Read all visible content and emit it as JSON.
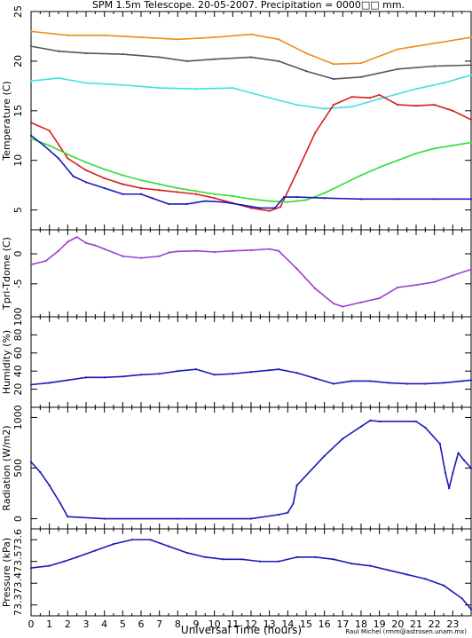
{
  "title": "SPM 1.5m Telescope. 20-05-2007. Precipitation = 0000□□ mm.",
  "xlabel": "Universal Time (hours)",
  "credit": "Raul Michel (rmm@astrosen.unam.mx)",
  "colors": {
    "orange": "#ef8a1e",
    "gray": "#555555",
    "cyan": "#40e0e0",
    "red": "#d81e1e",
    "green": "#33dd33",
    "blue": "#1a1ab8",
    "purple": "#9a3fd0"
  },
  "chart_data": [
    {
      "type": "scatter",
      "ylabel": "Temperature (C)",
      "xlim": [
        0,
        24
      ],
      "ylim": [
        3,
        25
      ],
      "xticks": [
        "0",
        "1",
        "2",
        "3",
        "4",
        "5",
        "6",
        "7",
        "8",
        "9",
        "10",
        "11",
        "12",
        "13",
        "14",
        "15",
        "16",
        "17",
        "18",
        "19",
        "20",
        "21",
        "22",
        "23"
      ],
      "yticks": [
        "5",
        "10",
        "15",
        "20",
        "25"
      ],
      "ytick_values": [
        5,
        10,
        15,
        20,
        25
      ],
      "series": [
        {
          "color": "orange",
          "x": [
            0,
            2,
            4,
            6,
            8,
            10,
            12,
            13.5,
            15,
            16.5,
            18,
            20,
            22,
            24
          ],
          "y": [
            23,
            22.6,
            22.6,
            22.4,
            22.2,
            22.4,
            22.7,
            22.2,
            20.8,
            19.7,
            19.8,
            21.2,
            21.8,
            22.4
          ]
        },
        {
          "color": "gray",
          "x": [
            0,
            1.5,
            3,
            5,
            7,
            8.5,
            10,
            12,
            13.5,
            15,
            16.5,
            18,
            20,
            22,
            24
          ],
          "y": [
            21.5,
            21,
            20.8,
            20.7,
            20.4,
            20,
            20.2,
            20.4,
            20,
            19,
            18.2,
            18.4,
            19.2,
            19.5,
            19.6
          ]
        },
        {
          "color": "cyan",
          "x": [
            0,
            1.5,
            3,
            5,
            7,
            9,
            11,
            13,
            14.5,
            16,
            17.5,
            19,
            21,
            22.5,
            24
          ],
          "y": [
            18,
            18.3,
            17.8,
            17.6,
            17.3,
            17.2,
            17.3,
            16.3,
            15.6,
            15.2,
            15.4,
            16.2,
            17.2,
            17.8,
            18.6
          ]
        },
        {
          "color": "red",
          "x": [
            0,
            1,
            2,
            3,
            4,
            5,
            6,
            7,
            8,
            9,
            10,
            11,
            12,
            13,
            13.6,
            14.5,
            15.5,
            16.5,
            17.5,
            18.5,
            19,
            20,
            21,
            22,
            23,
            24
          ],
          "y": [
            13.8,
            13,
            10.2,
            9,
            8.2,
            7.6,
            7.2,
            7,
            6.8,
            6.6,
            6.2,
            5.7,
            5.2,
            4.9,
            5.3,
            8.8,
            12.8,
            15.6,
            16.4,
            16.3,
            16.6,
            15.6,
            15.5,
            15.6,
            15,
            14.1
          ]
        },
        {
          "color": "green",
          "x": [
            0,
            1,
            2,
            3,
            4,
            5,
            6,
            7,
            8,
            9,
            10,
            11,
            12,
            13,
            14,
            15,
            16,
            17,
            18,
            19,
            20,
            21,
            22,
            23,
            24
          ],
          "y": [
            12.2,
            11.5,
            10.6,
            9.8,
            9.1,
            8.5,
            8,
            7.6,
            7.2,
            6.9,
            6.6,
            6.4,
            6.1,
            5.9,
            5.8,
            6,
            6.7,
            7.6,
            8.5,
            9.3,
            10,
            10.7,
            11.2,
            11.5,
            11.8
          ]
        },
        {
          "color": "blue",
          "x": [
            0,
            0.7,
            1.5,
            2.3,
            3,
            4,
            5,
            6,
            6.6,
            7.5,
            8.5,
            9.5,
            10.5,
            11.5,
            12.5,
            13.3,
            13.8,
            14.5,
            16,
            18,
            20,
            22,
            24
          ],
          "y": [
            12.5,
            11.5,
            10.2,
            8.4,
            7.8,
            7.2,
            6.6,
            6.6,
            6.2,
            5.6,
            5.6,
            5.9,
            5.8,
            5.5,
            5.2,
            5.2,
            6.3,
            6.3,
            6.2,
            6.1,
            6.1,
            6.1,
            6.1
          ]
        }
      ]
    },
    {
      "type": "scatter",
      "ylabel": "Tpri-Tdome (C)",
      "xlim": [
        0,
        24
      ],
      "ylim": [
        -10.5,
        4
      ],
      "xticks": [
        "0",
        "1",
        "2",
        "3",
        "4",
        "5",
        "6",
        "7",
        "8",
        "9",
        "10",
        "11",
        "12",
        "13",
        "14",
        "15",
        "16",
        "17",
        "18",
        "19",
        "20",
        "21",
        "22",
        "23"
      ],
      "yticks": [
        "0",
        "-5"
      ],
      "ytick_values": [
        0,
        -5
      ],
      "series": [
        {
          "color": "purple",
          "x": [
            0,
            0.8,
            1.5,
            2,
            2.5,
            3,
            3.5,
            4,
            4.5,
            5,
            6,
            7,
            7.5,
            8,
            9,
            10,
            11,
            12,
            13,
            13.5,
            14.5,
            15.5,
            16.5,
            17,
            18,
            19,
            20,
            21,
            22,
            23,
            24
          ],
          "y": [
            -1.8,
            -1.2,
            0.5,
            2,
            2.8,
            1.8,
            1.4,
            0.8,
            0.2,
            -0.4,
            -0.7,
            -0.4,
            0.2,
            0.4,
            0.5,
            0.3,
            0.5,
            0.6,
            0.8,
            0.5,
            -2.5,
            -5.8,
            -8.3,
            -8.8,
            -8.1,
            -7.4,
            -5.6,
            -5.2,
            -4.7,
            -3.6,
            -2.6
          ]
        }
      ]
    },
    {
      "type": "line",
      "ylabel": "Humidity (%)",
      "xlim": [
        0,
        24
      ],
      "ylim": [
        0,
        100
      ],
      "xticks": [
        "0",
        "1",
        "2",
        "3",
        "4",
        "5",
        "6",
        "7",
        "8",
        "9",
        "10",
        "11",
        "12",
        "13",
        "14",
        "15",
        "16",
        "17",
        "18",
        "19",
        "20",
        "21",
        "22",
        "23"
      ],
      "yticks": [
        "20",
        "40",
        "60",
        "80",
        "100"
      ],
      "ytick_values": [
        20,
        40,
        60,
        80,
        100
      ],
      "series": [
        {
          "color": "blue",
          "x": [
            0,
            1,
            2,
            3,
            4,
            5,
            6,
            7,
            8,
            9,
            10,
            11,
            12,
            13,
            13.5,
            14.5,
            15.5,
            16.5,
            17.5,
            18.5,
            19.5,
            20.5,
            21.5,
            22.5,
            23.5,
            24
          ],
          "y": [
            25,
            27,
            30,
            33,
            33,
            34,
            36,
            37,
            40,
            42,
            36,
            37,
            39,
            41,
            42,
            38,
            32,
            26,
            29,
            29,
            27,
            26,
            26,
            27,
            29,
            30
          ]
        }
      ]
    },
    {
      "type": "line",
      "ylabel": "Radiation (W/m2)",
      "xlim": [
        0,
        24
      ],
      "ylim": [
        -100,
        1100
      ],
      "xticks": [
        "0",
        "1",
        "2",
        "3",
        "4",
        "5",
        "6",
        "7",
        "8",
        "9",
        "10",
        "11",
        "12",
        "13",
        "14",
        "15",
        "16",
        "17",
        "18",
        "19",
        "20",
        "21",
        "22",
        "23"
      ],
      "yticks": [
        "0",
        "500",
        "1000"
      ],
      "ytick_values": [
        0,
        500,
        1000
      ],
      "series": [
        {
          "color": "blue",
          "x": [
            0,
            0.5,
            1,
            1.6,
            2,
            4,
            8,
            12,
            13.5,
            14,
            14.3,
            14.5,
            16,
            17,
            18,
            18.5,
            19,
            21,
            21.5,
            22.3,
            22.6,
            22.8,
            23,
            23.3,
            23.6,
            24
          ],
          "y": [
            560,
            460,
            330,
            150,
            20,
            0,
            0,
            0,
            40,
            60,
            150,
            330,
            620,
            790,
            910,
            970,
            960,
            960,
            900,
            740,
            450,
            300,
            450,
            650,
            580,
            500
          ]
        }
      ]
    },
    {
      "type": "scatter",
      "ylabel": "Pressure (kPa)",
      "xlim": [
        0,
        24
      ],
      "ylim": [
        73.25,
        73.65
      ],
      "xticks": [
        "0",
        "1",
        "2",
        "3",
        "4",
        "5",
        "6",
        "7",
        "8",
        "9",
        "10",
        "11",
        "12",
        "13",
        "14",
        "15",
        "16",
        "17",
        "18",
        "19",
        "20",
        "21",
        "22",
        "23"
      ],
      "yticks": [
        "73.3",
        "73.4",
        "73.5",
        "73.6"
      ],
      "ytick_values": [
        73.3,
        73.4,
        73.5,
        73.6
      ],
      "series": [
        {
          "color": "blue",
          "x": [
            0,
            1,
            1.8,
            2.5,
            3.5,
            4.5,
            5.5,
            6.5,
            7.5,
            8.5,
            9.5,
            10.5,
            11.5,
            12.5,
            13.5,
            14.5,
            15.5,
            16.5,
            17.5,
            18.5,
            19.5,
            20.5,
            21.5,
            22.5,
            23.5,
            24
          ],
          "y": [
            73.47,
            73.48,
            73.5,
            73.52,
            73.55,
            73.58,
            73.6,
            73.6,
            73.57,
            73.54,
            73.52,
            73.51,
            73.51,
            73.5,
            73.5,
            73.52,
            73.52,
            73.51,
            73.49,
            73.48,
            73.46,
            73.44,
            73.42,
            73.39,
            73.33,
            73.28
          ]
        }
      ]
    }
  ]
}
